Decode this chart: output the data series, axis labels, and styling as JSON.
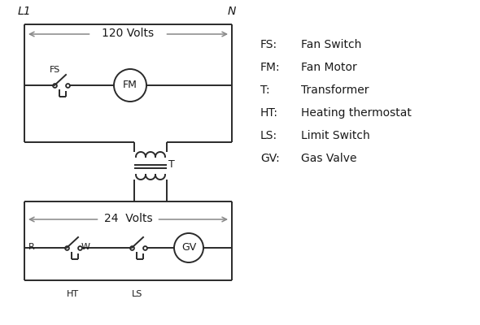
{
  "bg_color": "#ffffff",
  "line_color": "#2a2a2a",
  "arrow_color": "#888888",
  "text_color": "#1a1a1a",
  "legend": [
    [
      "FS:",
      "Fan Switch"
    ],
    [
      "FM:",
      "Fan Motor"
    ],
    [
      "T:",
      "Transformer"
    ],
    [
      "HT:",
      "Heating thermostat"
    ],
    [
      "LS:",
      "Limit Switch"
    ],
    [
      "GV:",
      "Gas Valve"
    ]
  ],
  "label_L1": "L1",
  "label_N": "N",
  "label_120V": "120 Volts",
  "label_24V": "24  Volts",
  "label_T": "T",
  "label_FS": "FS",
  "label_FM": "FM",
  "label_GV": "GV",
  "label_R": "R",
  "label_W": "W",
  "label_HT": "HT",
  "label_LS": "LS"
}
